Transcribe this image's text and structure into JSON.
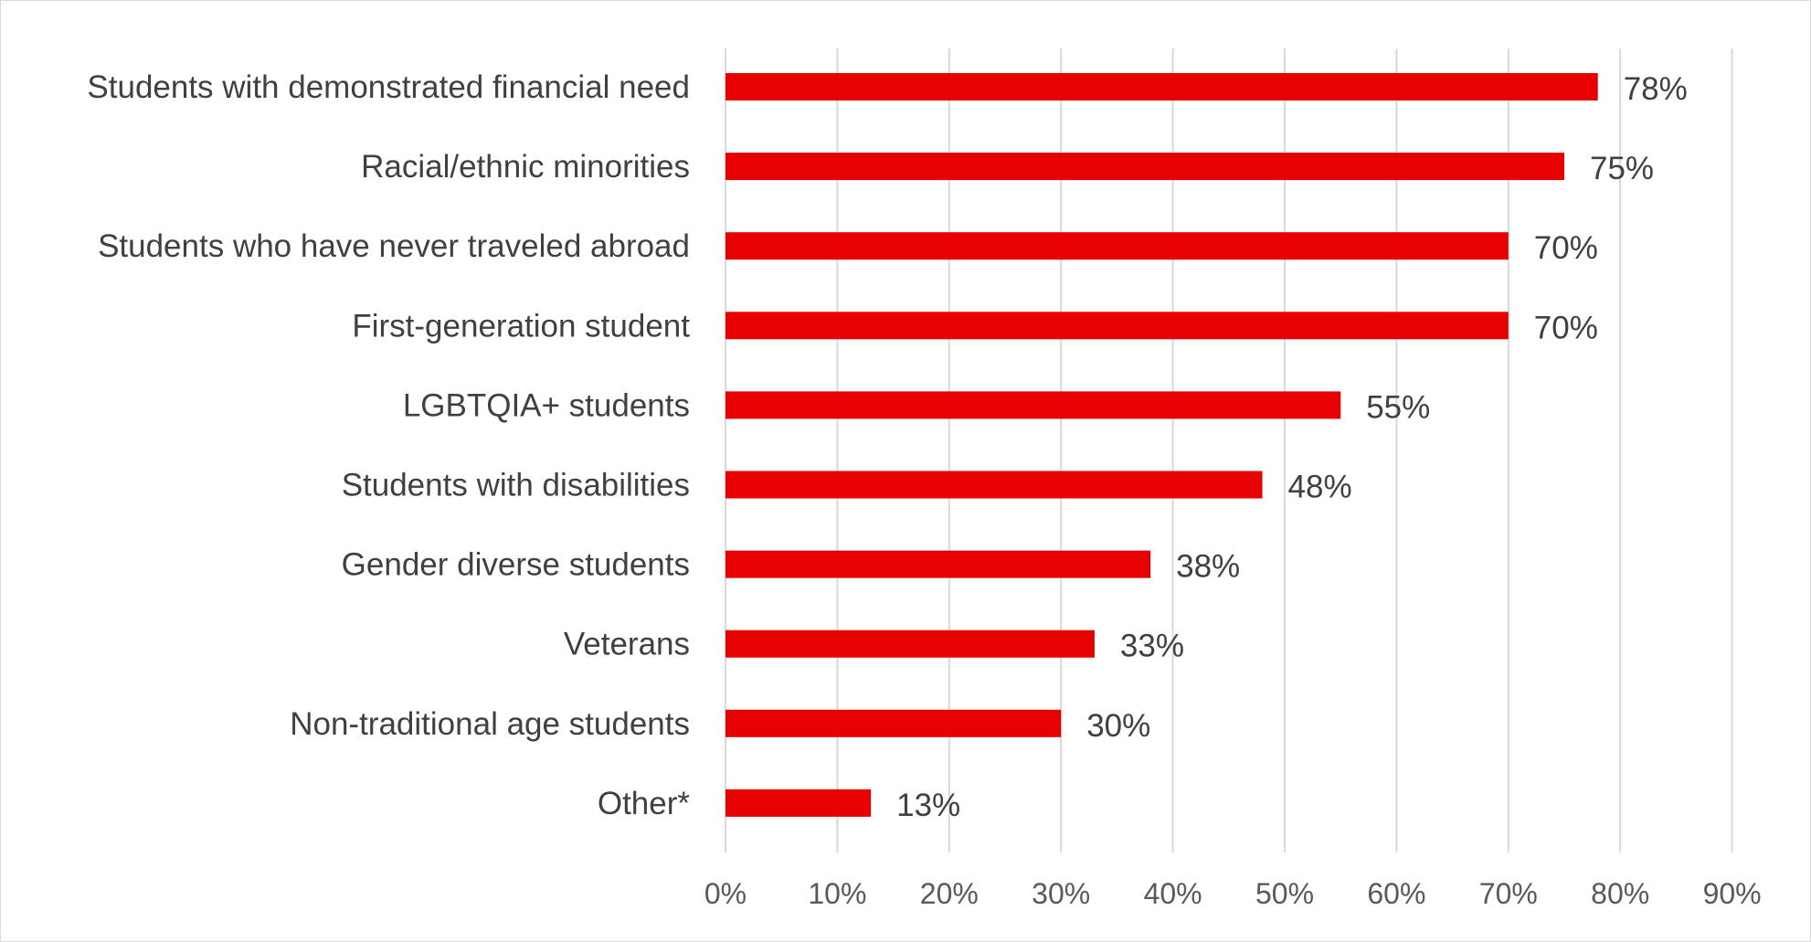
{
  "chart_data": {
    "type": "bar",
    "orientation": "horizontal",
    "categories": [
      "Students with demonstrated financial need",
      "Racial/ethnic minorities",
      "Students who have never traveled abroad",
      "First-generation student",
      "LGBTQIA+ students",
      "Students with disabilities",
      "Gender diverse students",
      "Veterans",
      "Non-traditional age students",
      "Other*"
    ],
    "values": [
      78,
      75,
      70,
      70,
      55,
      48,
      38,
      33,
      30,
      13
    ],
    "value_labels": [
      "78%",
      "75%",
      "70%",
      "70%",
      "55%",
      "48%",
      "38%",
      "33%",
      "30%",
      "13%"
    ],
    "xlim": [
      0,
      90
    ],
    "xticks": [
      0,
      10,
      20,
      30,
      40,
      50,
      60,
      70,
      80,
      90
    ],
    "xtick_labels": [
      "0%",
      "10%",
      "20%",
      "30%",
      "40%",
      "50%",
      "60%",
      "70%",
      "80%",
      "90%"
    ],
    "bar_color": "#e60000",
    "grid": true,
    "legend": "none",
    "title": "",
    "xlabel": "",
    "ylabel": ""
  }
}
